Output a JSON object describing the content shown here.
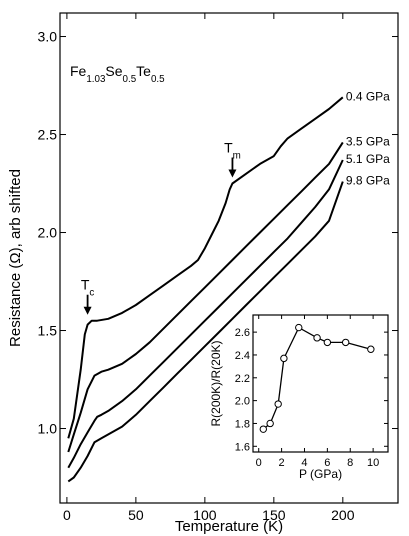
{
  "chart_data": [
    {
      "type": "line",
      "xlabel": "Temperature (K)",
      "ylabel": "Resistance (Ω), arb shifted",
      "xlim": [
        -5,
        240
      ],
      "ylim": [
        0.62,
        3.12
      ],
      "xticks": [
        0,
        50,
        100,
        150,
        200
      ],
      "xtick_labels": [
        "0",
        "50",
        "100",
        "150",
        "200"
      ],
      "yticks": [
        1.0,
        1.5,
        2.0,
        2.5,
        3.0
      ],
      "ytick_labels": [
        "1.0",
        "1.5",
        "2.0",
        "2.5",
        "3.0"
      ],
      "compound": {
        "base": "Fe",
        "s1": "1.03",
        "b2": "Se",
        "s2": "0.5",
        "b3": "Te",
        "s3": "0.5"
      },
      "annotations": [
        {
          "base": "T",
          "sub": "c",
          "x": 15,
          "y": 1.55
        },
        {
          "base": "T",
          "sub": "m",
          "x": 120,
          "y": 2.25
        }
      ],
      "series": [
        {
          "name": "0.4 GPa",
          "x": [
            1,
            5,
            10,
            13,
            15,
            18,
            22,
            30,
            40,
            50,
            60,
            70,
            80,
            90,
            95,
            100,
            105,
            110,
            115,
            118,
            120,
            130,
            140,
            150,
            155,
            160,
            170,
            180,
            190,
            200
          ],
          "y": [
            0.95,
            1.05,
            1.3,
            1.48,
            1.53,
            1.55,
            1.55,
            1.56,
            1.59,
            1.63,
            1.68,
            1.73,
            1.78,
            1.83,
            1.86,
            1.92,
            1.99,
            2.06,
            2.15,
            2.22,
            2.25,
            2.3,
            2.35,
            2.39,
            2.44,
            2.48,
            2.53,
            2.58,
            2.63,
            2.69
          ]
        },
        {
          "name": "3.5 GPa",
          "x": [
            1,
            5,
            10,
            15,
            20,
            25,
            30,
            40,
            50,
            60,
            70,
            80,
            90,
            100,
            110,
            120,
            130,
            140,
            150,
            160,
            170,
            180,
            190,
            200
          ],
          "y": [
            0.88,
            0.97,
            1.08,
            1.2,
            1.27,
            1.29,
            1.3,
            1.33,
            1.38,
            1.44,
            1.51,
            1.58,
            1.65,
            1.72,
            1.79,
            1.86,
            1.93,
            2.0,
            2.07,
            2.14,
            2.21,
            2.28,
            2.35,
            2.46
          ]
        },
        {
          "name": "5.1 GPa",
          "x": [
            1,
            5,
            10,
            15,
            20,
            22,
            25,
            30,
            40,
            50,
            60,
            70,
            80,
            90,
            100,
            110,
            120,
            130,
            140,
            150,
            160,
            170,
            180,
            190,
            200
          ],
          "y": [
            0.8,
            0.85,
            0.92,
            0.98,
            1.04,
            1.06,
            1.07,
            1.09,
            1.14,
            1.2,
            1.27,
            1.34,
            1.41,
            1.48,
            1.55,
            1.62,
            1.69,
            1.76,
            1.83,
            1.9,
            1.97,
            2.05,
            2.13,
            2.22,
            2.37
          ]
        },
        {
          "name": "9.8 GPa",
          "x": [
            1,
            5,
            10,
            15,
            20,
            25,
            30,
            40,
            50,
            60,
            70,
            80,
            90,
            100,
            110,
            120,
            130,
            140,
            150,
            160,
            170,
            180,
            190,
            200
          ],
          "y": [
            0.73,
            0.75,
            0.8,
            0.86,
            0.93,
            0.95,
            0.97,
            1.01,
            1.07,
            1.14,
            1.21,
            1.28,
            1.35,
            1.42,
            1.49,
            1.56,
            1.63,
            1.7,
            1.77,
            1.84,
            1.91,
            1.98,
            2.06,
            2.26
          ]
        }
      ]
    },
    {
      "type": "line",
      "inset": true,
      "xlabel": "P (GPa)",
      "ylabel": "R(200K)/R(20K)",
      "xlim": [
        -0.5,
        11.3
      ],
      "ylim": [
        1.55,
        2.75
      ],
      "xticks": [
        0,
        2,
        4,
        6,
        8,
        10
      ],
      "xtick_labels": [
        "0",
        "2",
        "4",
        "6",
        "8",
        "10"
      ],
      "yticks": [
        1.6,
        1.8,
        2.0,
        2.2,
        2.4,
        2.6
      ],
      "ytick_labels": [
        "1.6",
        "1.8",
        "2.0",
        "2.2",
        "2.4",
        "2.6"
      ],
      "series": [
        {
          "x": [
            0.4,
            1.0,
            1.7,
            2.2,
            3.5,
            5.1,
            6.0,
            7.6,
            9.8
          ],
          "y": [
            1.75,
            1.8,
            1.97,
            2.37,
            2.64,
            2.55,
            2.51,
            2.51,
            2.45
          ],
          "markers": "open-circle"
        }
      ]
    }
  ]
}
